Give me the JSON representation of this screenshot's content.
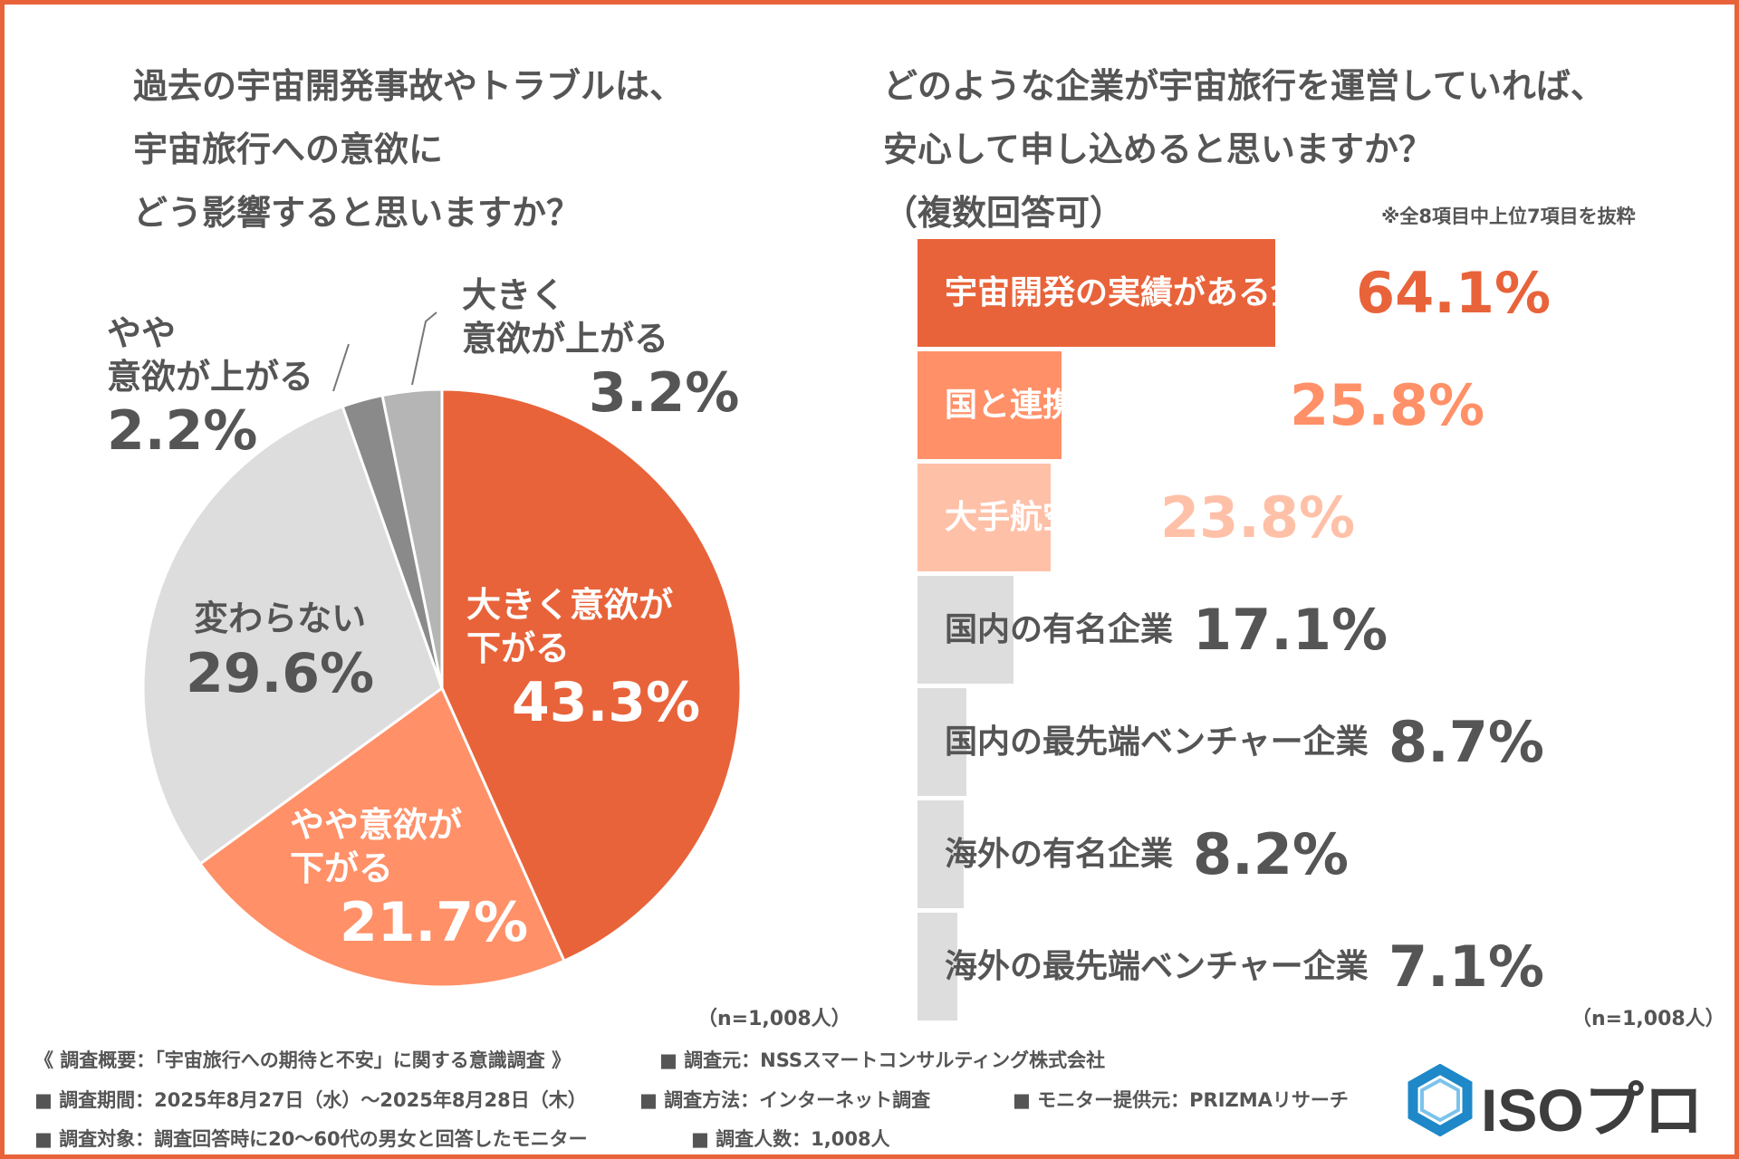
{
  "colors": {
    "border": "#E8633A",
    "text": "#555555",
    "slices": [
      "#E8633A",
      "#FF9068",
      "#DDDDDD",
      "#8A8A8A",
      "#B5B5B5"
    ],
    "bars": [
      "#E8633A",
      "#FF9068",
      "#FFC0A8",
      "#DDDDDD",
      "#DDDDDD",
      "#DDDDDD",
      "#DDDDDD"
    ],
    "bar_label_colors": [
      "#ffffff",
      "#ffffff",
      "#ffffff",
      "#555555",
      "#555555",
      "#555555",
      "#555555"
    ],
    "bar_value_colors": [
      "#E8633A",
      "#FF9068",
      "#FFC0A8",
      "#555555",
      "#555555",
      "#555555",
      "#555555"
    ]
  },
  "left": {
    "title": "過去の宇宙開発事故やトラブルは、\n宇宙旅行への意欲に\nどう影響すると思いますか？",
    "n_note": "（n=1,008人）"
  },
  "right": {
    "title": "どのような企業が宇宙旅行を運営していれば、\n安心して申し込めると思いますか？\n（複数回答可）",
    "sub_note": "※全8項目中上位7項目を抜粋",
    "n_note": "（n=1,008人）"
  },
  "chart_data": [
    {
      "type": "pie",
      "title": "過去の宇宙開発事故やトラブルは、宇宙旅行への意欲にどう影響すると思いますか？",
      "slices": [
        {
          "label": "大きく意欲が下がる",
          "value": 43.3,
          "display": "43.3%"
        },
        {
          "label": "やや意欲が下がる",
          "value": 21.7,
          "display": "21.7%"
        },
        {
          "label": "変わらない",
          "value": 29.6,
          "display": "29.6%"
        },
        {
          "label": "やや意欲が上がる",
          "value": 2.2,
          "display": "2.2%"
        },
        {
          "label": "大きく意欲が上がる",
          "value": 3.2,
          "display": "3.2%"
        }
      ],
      "slice_label_text": [
        "大きく意欲が\n下がる",
        "やや意欲が\n下がる",
        "変わらない",
        "やや\n意欲が上がる",
        "大きく\n意欲が上がる"
      ],
      "start": "top",
      "direction": "clockwise"
    },
    {
      "type": "bar",
      "orientation": "horizontal",
      "title": "どのような企業が宇宙旅行を運営していれば、安心して申し込めると思いますか？（複数回答可）",
      "categories": [
        "宇宙開発の実績がある企業",
        "国と連携している企業",
        "大手航空会社",
        "国内の有名企業",
        "国内の最先端ベンチャー企業",
        "海外の有名企業",
        "海外の最先端ベンチャー企業"
      ],
      "values": [
        64.1,
        25.8,
        23.8,
        17.1,
        8.7,
        8.2,
        7.1
      ],
      "display": [
        "64.1%",
        "25.8%",
        "23.8%",
        "17.1%",
        "8.7%",
        "8.2%",
        "7.1%"
      ],
      "unit": "%",
      "xlim": [
        0,
        100
      ]
    }
  ],
  "footer": {
    "line1_a": "《 調査概要：「宇宙旅行への期待と不安」に関する意識調査 》",
    "line1_b": "■ 調査元：NSSスマートコンサルティング株式会社",
    "line2_a": "■ 調査期間：2025年8月27日（水）～2025年8月28日（木）",
    "line2_b": "■ 調査方法：インターネット調査",
    "line2_c": "■ モニター提供元：PRIZMAリサーチ",
    "line3_a": "■ 調査対象：調査回答時に20～60代の男女と回答したモニター",
    "line3_b": "■ 調査人数：1,008人"
  },
  "logo": {
    "text": "ISOプロ",
    "icon": "hexagon-icon",
    "colors": [
      "#1E88C8",
      "#3d3d3d"
    ]
  }
}
